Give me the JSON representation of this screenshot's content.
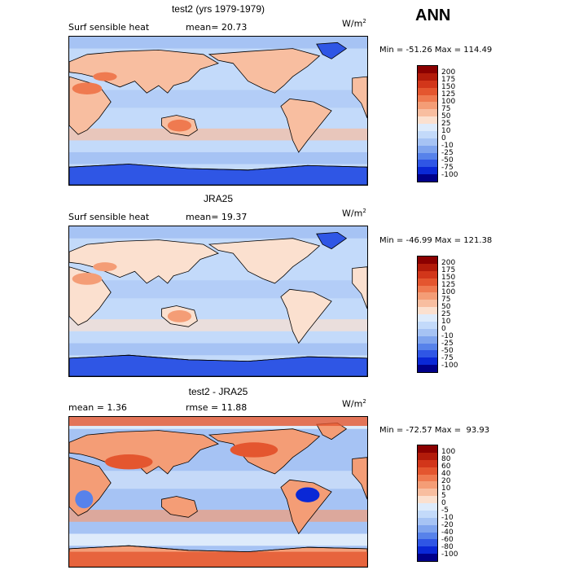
{
  "season": "ANN",
  "panels": [
    {
      "title": "test2 (yrs 1979-1979)",
      "variable": "Surf sensible heat",
      "stat1": "mean=  20.73",
      "stat2": "",
      "units_base": "W/m",
      "units_exp": "2",
      "minmax": "Min = -51.26 Max = 114.49",
      "colorbar_labels": [
        "200",
        "175",
        "150",
        "125",
        "100",
        "75",
        "50",
        "25",
        "10",
        "0",
        "-10",
        "-25",
        "-50",
        "-75",
        "-100"
      ],
      "colorbar_colors": [
        "#8b0000",
        "#b21b0a",
        "#d2361a",
        "#e4562f",
        "#ef7a50",
        "#f49d76",
        "#f8bea0",
        "#fbe0cf",
        "#deebfb",
        "#c3dafa",
        "#a6c3f4",
        "#7fa4ee",
        "#5782ea",
        "#2f56e5",
        "#0a28d6",
        "#00008a"
      ],
      "map_style": "model"
    },
    {
      "title": "JRA25",
      "variable": "Surf sensible heat",
      "stat1": "mean=  19.37",
      "stat2": "",
      "units_base": "W/m",
      "units_exp": "2",
      "minmax": "Min = -46.99 Max = 121.38",
      "colorbar_labels": [
        "200",
        "175",
        "150",
        "125",
        "100",
        "75",
        "50",
        "25",
        "10",
        "0",
        "-10",
        "-25",
        "-50",
        "-75",
        "-100"
      ],
      "colorbar_colors": [
        "#8b0000",
        "#b21b0a",
        "#d2361a",
        "#e4562f",
        "#ef7a50",
        "#f49d76",
        "#f8bea0",
        "#fbe0cf",
        "#deebfb",
        "#c3dafa",
        "#a6c3f4",
        "#7fa4ee",
        "#5782ea",
        "#2f56e5",
        "#0a28d6",
        "#00008a"
      ],
      "map_style": "obs"
    },
    {
      "title": "test2 - JRA25",
      "variable": "",
      "stat1": "mean =   1.36",
      "stat2": "rmse =  11.88",
      "units_base": "W/m",
      "units_exp": "2",
      "minmax": "Min = -72.57 Max =  93.93",
      "colorbar_labels": [
        "100",
        "80",
        "60",
        "40",
        "20",
        "10",
        "5",
        "0",
        "-5",
        "-10",
        "-20",
        "-40",
        "-60",
        "-80",
        "-100"
      ],
      "colorbar_colors": [
        "#8b0000",
        "#b21b0a",
        "#d2361a",
        "#e4562f",
        "#ef7a50",
        "#f49d76",
        "#f8bea0",
        "#fbe0cf",
        "#deebfb",
        "#c3dafa",
        "#a6c3f4",
        "#7fa4ee",
        "#5782ea",
        "#2f56e5",
        "#0a28d6",
        "#00008a"
      ],
      "map_style": "diff"
    }
  ]
}
